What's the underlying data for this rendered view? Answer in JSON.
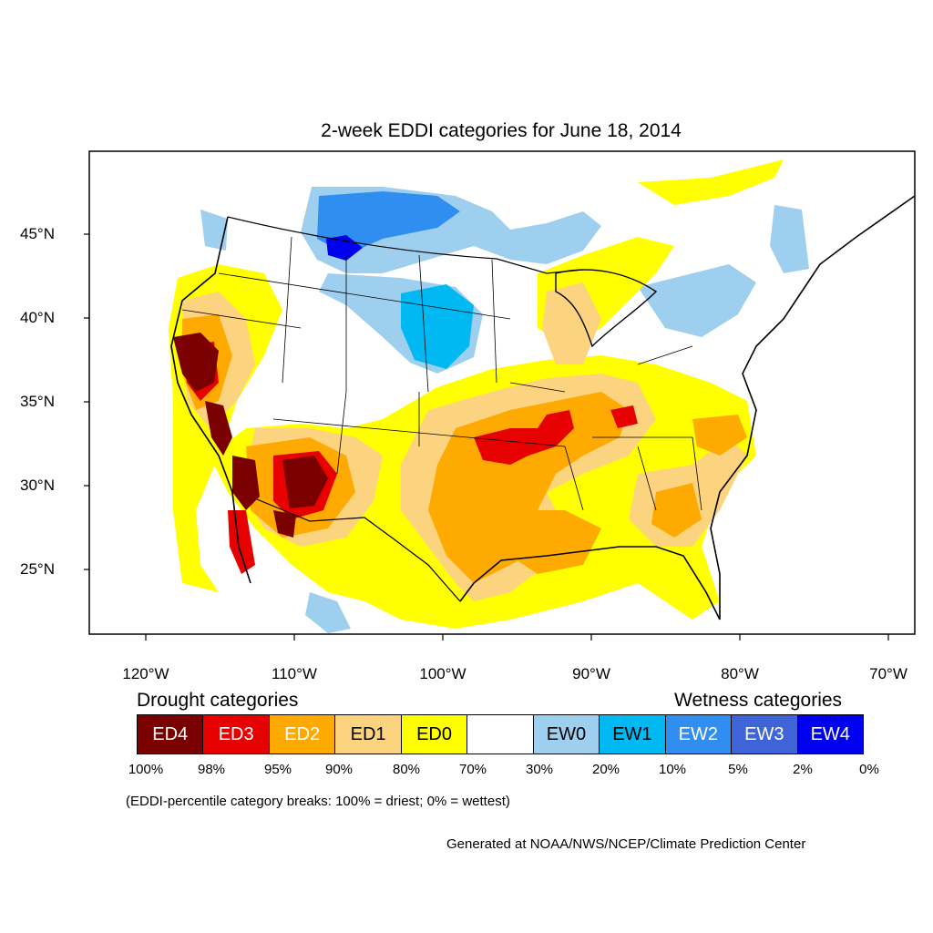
{
  "title": "2-week EDDI categories for June 18, 2014",
  "lat_labels": [
    "45°N",
    "40°N",
    "35°N",
    "30°N",
    "25°N"
  ],
  "lon_labels": [
    "120°W",
    "110°W",
    "100°W",
    "90°W",
    "80°W",
    "70°W"
  ],
  "legend": {
    "drought_heading": "Drought categories",
    "wetness_heading": "Wetness categories",
    "categories": [
      {
        "label": "ED4",
        "color": "#7a0000",
        "text_color": "#ffffff"
      },
      {
        "label": "ED3",
        "color": "#e60000",
        "text_color": "#ffffff"
      },
      {
        "label": "ED2",
        "color": "#ffaa00",
        "text_color": "#ffffff"
      },
      {
        "label": "ED1",
        "color": "#fcd37f",
        "text_color": "#000000"
      },
      {
        "label": "ED0",
        "color": "#ffff00",
        "text_color": "#000000"
      },
      {
        "label": "",
        "color": "#ffffff",
        "text_color": "#000000"
      },
      {
        "label": "EW0",
        "color": "#9ecfee",
        "text_color": "#000000"
      },
      {
        "label": "EW1",
        "color": "#00b9f2",
        "text_color": "#000000"
      },
      {
        "label": "EW2",
        "color": "#2f8ef0",
        "text_color": "#ffffff"
      },
      {
        "label": "EW3",
        "color": "#3f64d8",
        "text_color": "#ffffff"
      },
      {
        "label": "EW4",
        "color": "#0000f0",
        "text_color": "#ffffff"
      }
    ],
    "percent_breaks": [
      "100%",
      "98%",
      "95%",
      "90%",
      "80%",
      "70%",
      "30%",
      "20%",
      "10%",
      "5%",
      "2%",
      "0%"
    ],
    "breaks_note": "(EDDI-percentile category breaks: 100% = driest; 0% = wettest)"
  },
  "credit": "Generated at NOAA/NWS/NCEP/Climate Prediction Center"
}
